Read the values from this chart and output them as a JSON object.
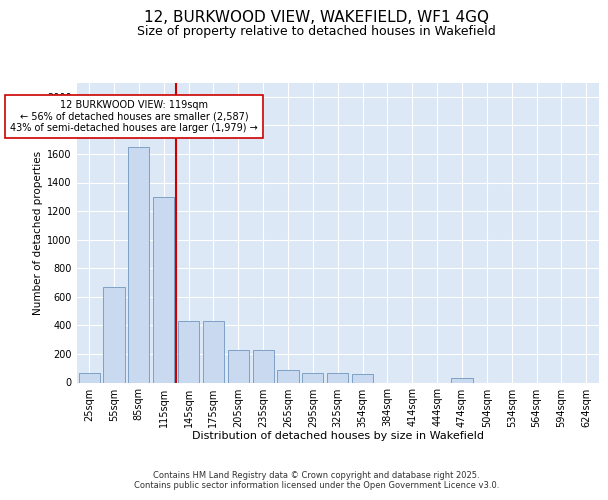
{
  "title": "12, BURKWOOD VIEW, WAKEFIELD, WF1 4GQ",
  "subtitle": "Size of property relative to detached houses in Wakefield",
  "xlabel": "Distribution of detached houses by size in Wakefield",
  "ylabel": "Number of detached properties",
  "categories": [
    "25sqm",
    "55sqm",
    "85sqm",
    "115sqm",
    "145sqm",
    "175sqm",
    "205sqm",
    "235sqm",
    "265sqm",
    "295sqm",
    "325sqm",
    "354sqm",
    "384sqm",
    "414sqm",
    "444sqm",
    "474sqm",
    "504sqm",
    "534sqm",
    "564sqm",
    "594sqm",
    "624sqm"
  ],
  "values": [
    65,
    670,
    1650,
    1300,
    430,
    430,
    230,
    230,
    90,
    65,
    65,
    60,
    0,
    0,
    0,
    35,
    0,
    0,
    0,
    0,
    0
  ],
  "bar_color": "#c9d9ef",
  "bar_edge_color": "#7096be",
  "vline_color": "#cc0000",
  "annotation_text": "12 BURKWOOD VIEW: 119sqm\n← 56% of detached houses are smaller (2,587)\n43% of semi-detached houses are larger (1,979) →",
  "annotation_box_color": "#ffffff",
  "annotation_box_edge": "#cc0000",
  "ylim": [
    0,
    2100
  ],
  "yticks": [
    0,
    200,
    400,
    600,
    800,
    1000,
    1200,
    1400,
    1600,
    1800,
    2000
  ],
  "background_color": "#dce8f5",
  "footer": "Contains HM Land Registry data © Crown copyright and database right 2025.\nContains public sector information licensed under the Open Government Licence v3.0.",
  "title_fontsize": 11,
  "subtitle_fontsize": 9,
  "xlabel_fontsize": 8,
  "ylabel_fontsize": 7.5,
  "tick_fontsize": 7,
  "footer_fontsize": 6,
  "annot_fontsize": 7
}
